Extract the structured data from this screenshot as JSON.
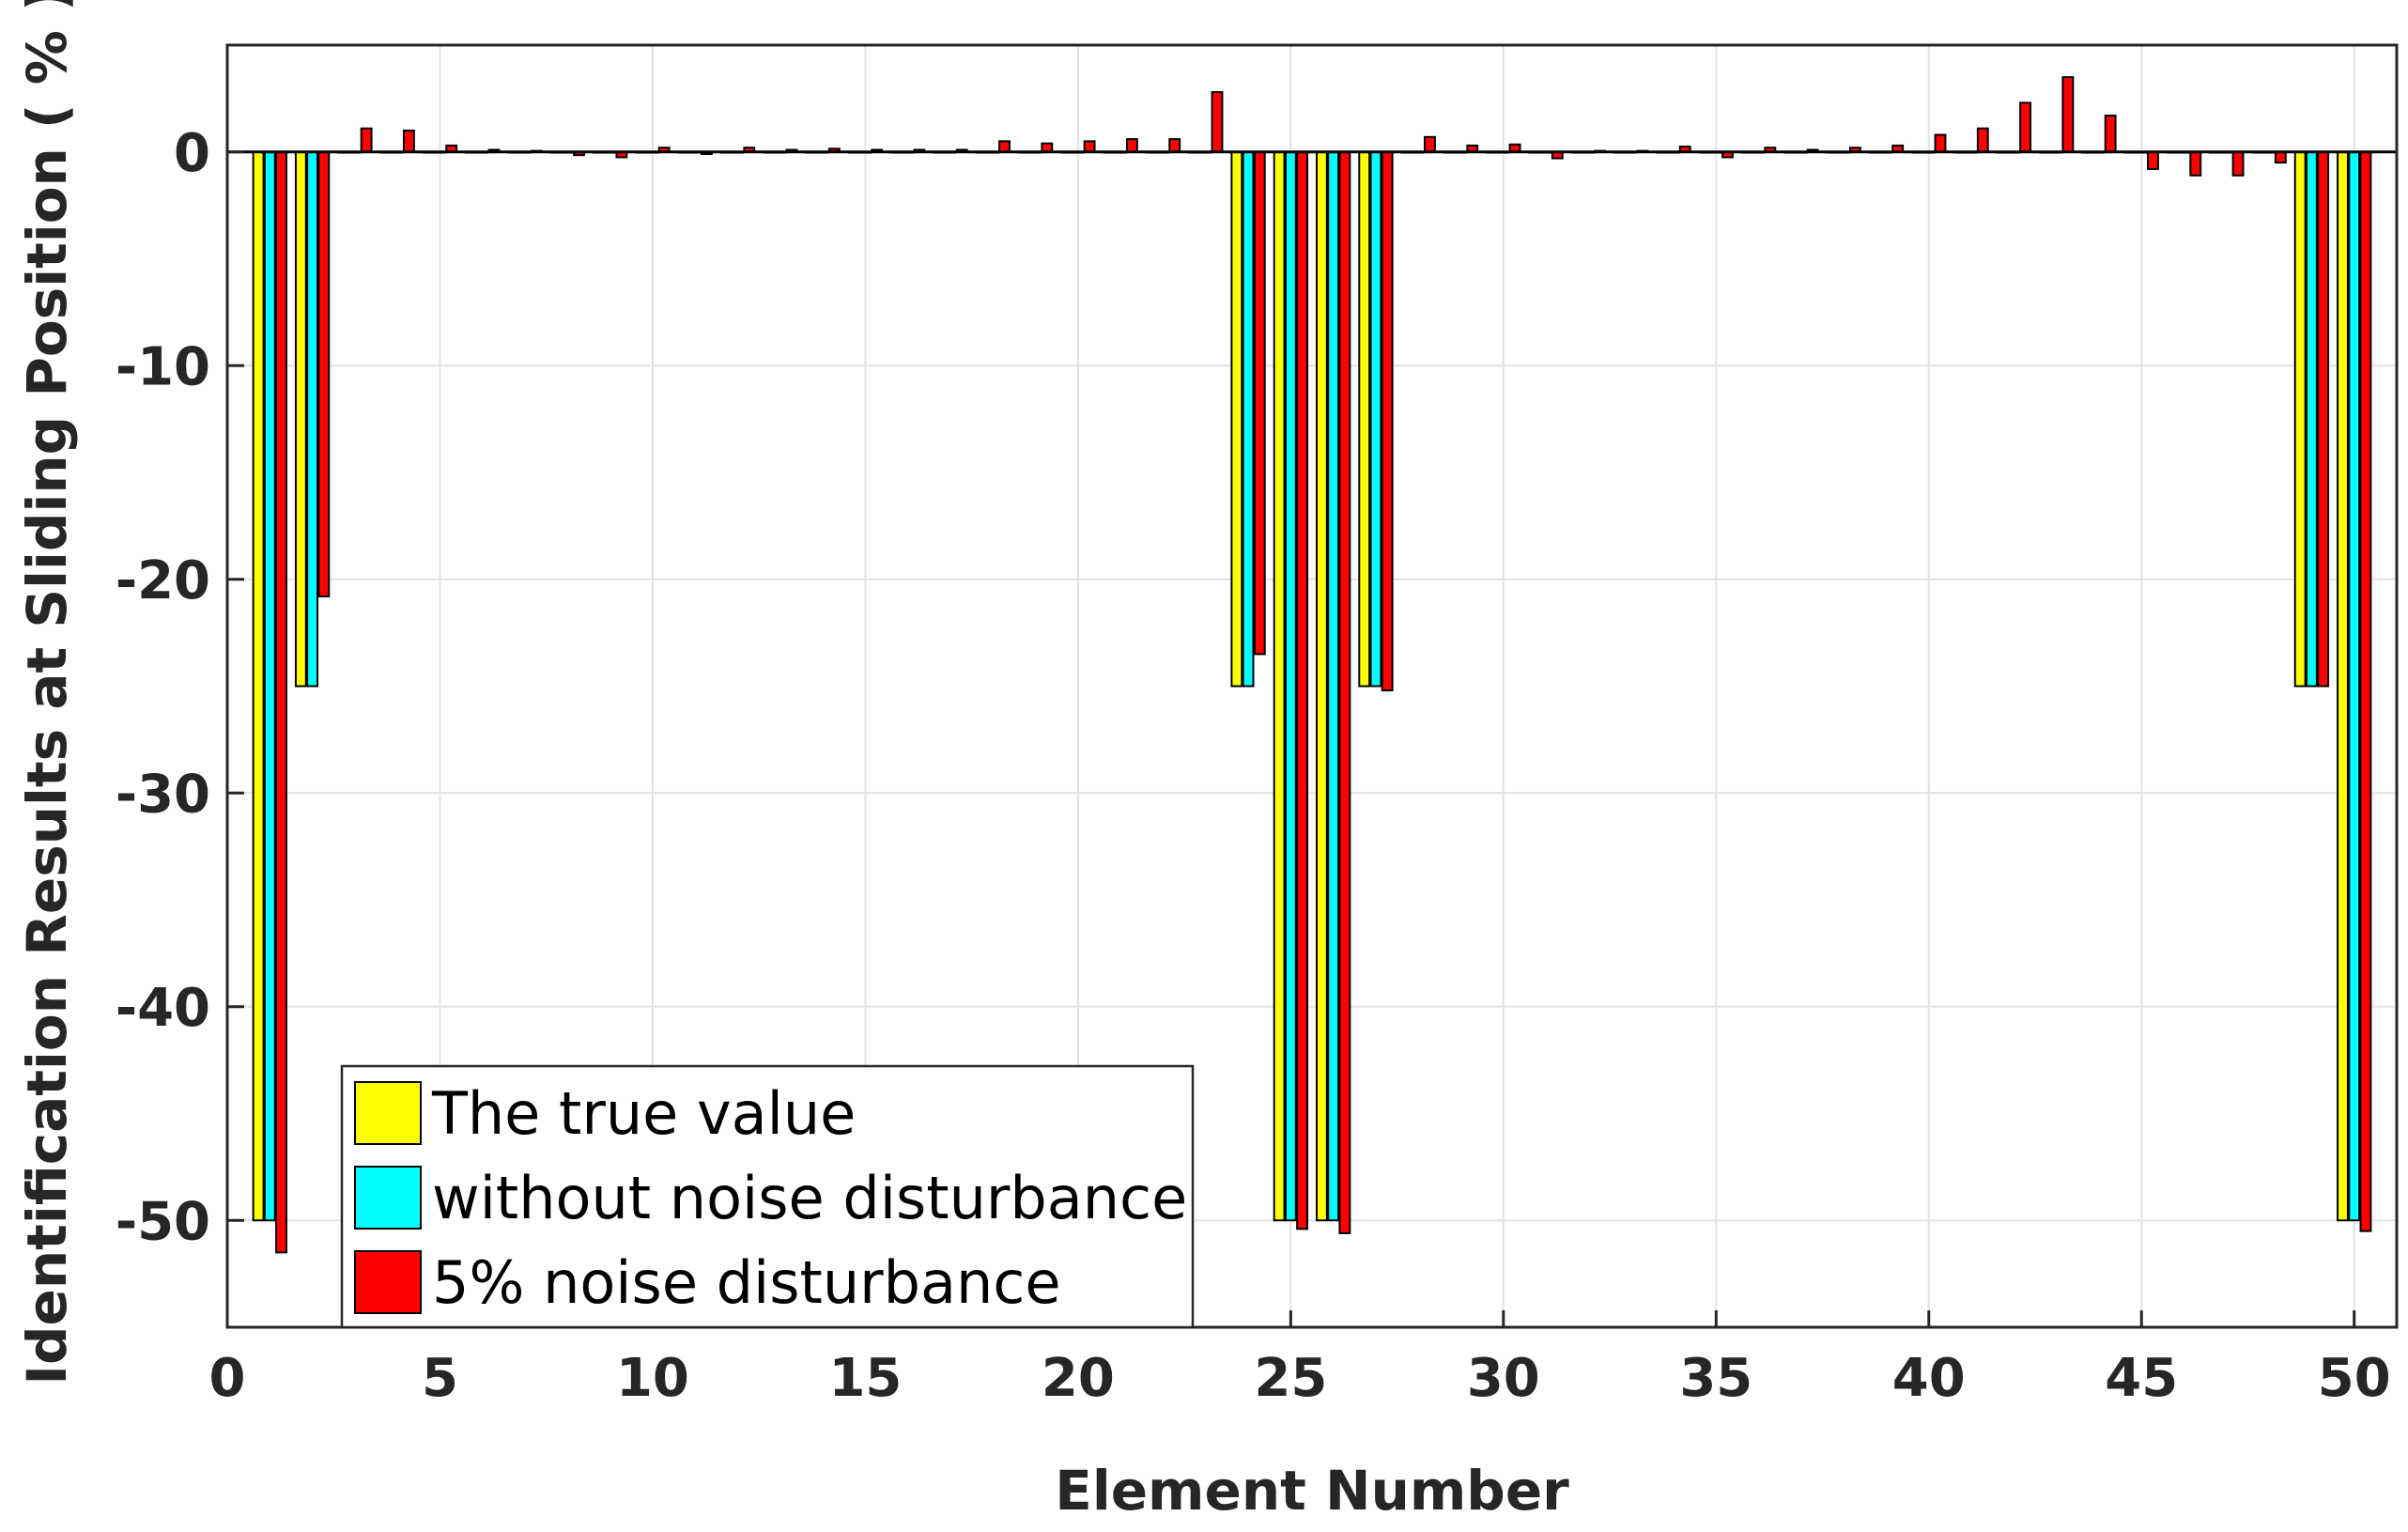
{
  "chart_data": {
    "type": "bar",
    "title": "",
    "xlabel": "Element Number",
    "ylabel": "Identification Results at Sliding Position ( % )",
    "xlim": [
      0,
      51
    ],
    "ylim": [
      -55,
      5
    ],
    "xticks": [
      0,
      5,
      10,
      15,
      20,
      25,
      30,
      35,
      40,
      45,
      50
    ],
    "yticks": [
      0,
      -10,
      -20,
      -30,
      -40,
      -50
    ],
    "grid": true,
    "legend_position": "bottom-left",
    "categories": [
      1,
      2,
      3,
      4,
      5,
      6,
      7,
      8,
      9,
      10,
      11,
      12,
      13,
      14,
      15,
      16,
      17,
      18,
      19,
      20,
      21,
      22,
      23,
      24,
      25,
      26,
      27,
      28,
      29,
      30,
      31,
      32,
      33,
      34,
      35,
      36,
      37,
      38,
      39,
      40,
      41,
      42,
      43,
      44,
      45,
      46,
      47,
      48,
      49,
      50
    ],
    "series": [
      {
        "name": "The true value",
        "color": "#FFFF00",
        "values": [
          -50,
          -25,
          0,
          0,
          0,
          0,
          0,
          0,
          0,
          0,
          0,
          0,
          0,
          0,
          0,
          0,
          0,
          0,
          0,
          0,
          0,
          0,
          0,
          -25,
          -50,
          -50,
          -25,
          0,
          0,
          0,
          0,
          0,
          0,
          0,
          0,
          0,
          0,
          0,
          0,
          0,
          0,
          0,
          0,
          0,
          0,
          0,
          0,
          0,
          -25,
          -50
        ]
      },
      {
        "name": "without noise disturbance",
        "color": "#00FFFF",
        "values": [
          -50,
          -25,
          0,
          0,
          0,
          0,
          0,
          0,
          0,
          0,
          0,
          0,
          0,
          0,
          0,
          0,
          0,
          0,
          0,
          0,
          0,
          0,
          0,
          -25,
          -50,
          -50,
          -25,
          0,
          0,
          0,
          0,
          0,
          0,
          0,
          0,
          0,
          0,
          0,
          0,
          0,
          0,
          0,
          0,
          0,
          0,
          0,
          0,
          0,
          -25,
          -50
        ]
      },
      {
        "name": "5% noise disturbance",
        "color": "#FF0000",
        "values": [
          -51.5,
          -20.8,
          1.1,
          1.0,
          0.3,
          0.1,
          0.05,
          -0.15,
          -0.25,
          0.2,
          -0.1,
          0.2,
          0.1,
          0.15,
          0.1,
          0.1,
          0.1,
          0.5,
          0.4,
          0.5,
          0.6,
          0.6,
          2.8,
          -23.5,
          -50.4,
          -50.6,
          -25.2,
          0.7,
          0.3,
          0.35,
          -0.3,
          0.05,
          0.05,
          0.25,
          -0.25,
          0.2,
          0.1,
          0.2,
          0.3,
          0.8,
          1.1,
          2.3,
          3.5,
          1.7,
          -0.8,
          -1.1,
          -1.1,
          -0.5,
          -25,
          -50.5
        ]
      }
    ]
  }
}
